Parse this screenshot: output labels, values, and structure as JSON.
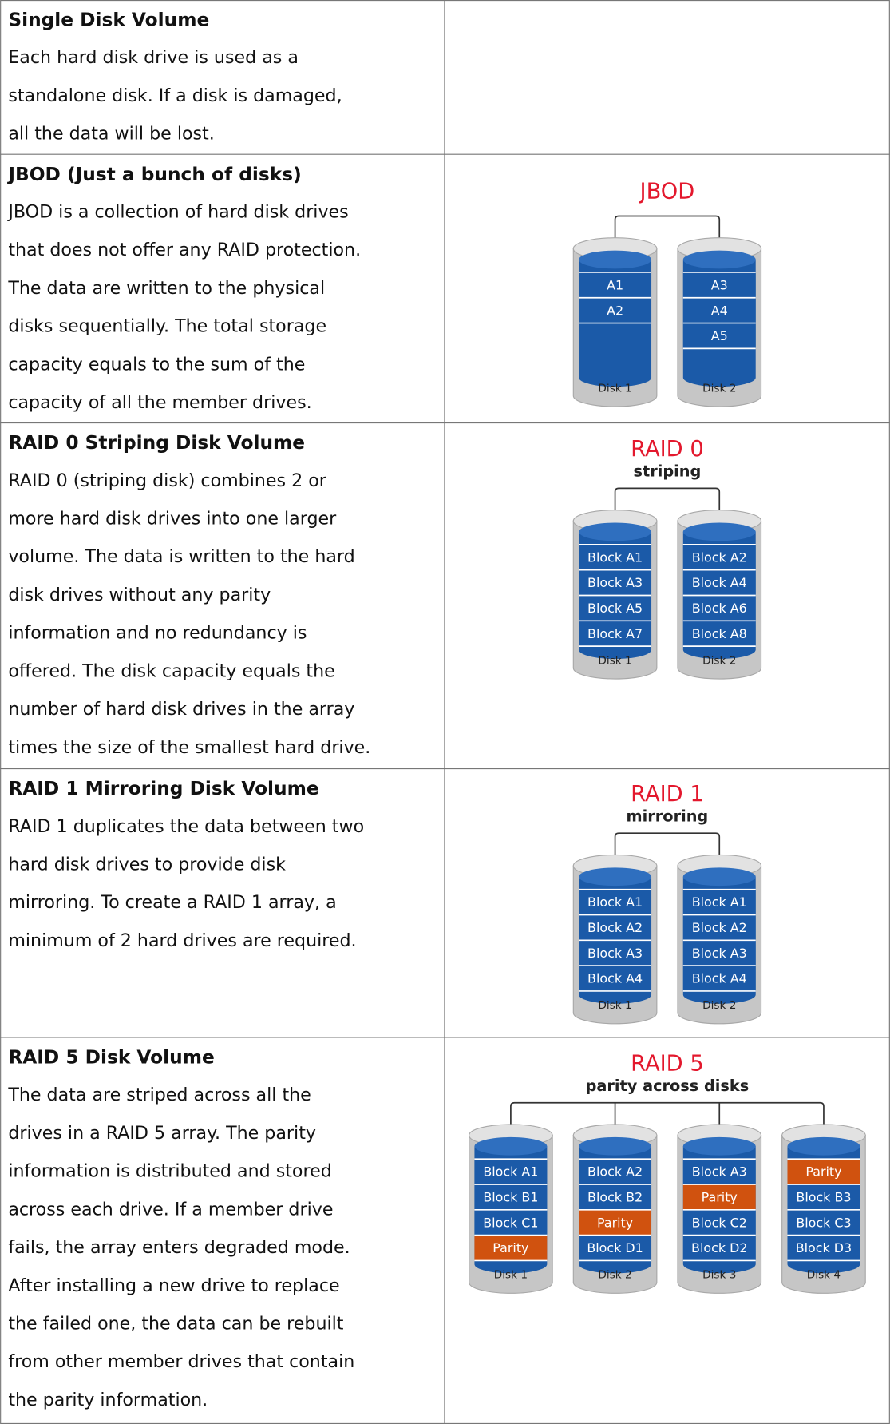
{
  "rows": [
    {
      "title": "Single Disk Volume",
      "lines": [
        "Each hard disk drive is used as a",
        "standalone disk.  If a disk is damaged,",
        "all the data will be lost."
      ]
    },
    {
      "title": "JBOD (Just a bunch of disks)",
      "lines": [
        "JBOD is a collection of hard disk drives",
        "that does not offer any RAID protection.",
        "The data are written to the physical",
        "disks sequentially.  The total storage",
        "capacity equals to the sum of the",
        "capacity of all the member drives."
      ],
      "diagram": {
        "title": "JBOD",
        "disks": [
          {
            "label": "Disk 1",
            "blocks": [
              {
                "label": "A1",
                "color": "#1b5aa8"
              },
              {
                "label": "A2",
                "color": "#1b5aa8"
              }
            ]
          },
          {
            "label": "Disk 2",
            "blocks": [
              {
                "label": "A3",
                "color": "#1b5aa8"
              },
              {
                "label": "A4",
                "color": "#1b5aa8"
              },
              {
                "label": "A5",
                "color": "#1b5aa8"
              }
            ]
          }
        ]
      }
    },
    {
      "title": "RAID 0 Striping Disk Volume",
      "lines": [
        "RAID 0 (striping disk) combines 2 or",
        "more hard disk drives into one larger",
        "volume.  The data is written to the hard",
        "disk drives without any parity",
        "information and no redundancy is",
        "offered.  The disk capacity equals the",
        "number of hard disk drives in the array",
        "times the size of the smallest hard drive."
      ],
      "diagram": {
        "title": "RAID 0",
        "subtitle": "striping",
        "disks": [
          {
            "label": "Disk 1",
            "blocks": [
              {
                "label": "Block A1",
                "color": "#1b5aa8"
              },
              {
                "label": "Block A3",
                "color": "#1b5aa8"
              },
              {
                "label": "Block A5",
                "color": "#1b5aa8"
              },
              {
                "label": "Block A7",
                "color": "#1b5aa8"
              }
            ]
          },
          {
            "label": "Disk 2",
            "blocks": [
              {
                "label": "Block A2",
                "color": "#1b5aa8"
              },
              {
                "label": "Block A4",
                "color": "#1b5aa8"
              },
              {
                "label": "Block A6",
                "color": "#1b5aa8"
              },
              {
                "label": "Block A8",
                "color": "#1b5aa8"
              }
            ]
          }
        ]
      }
    },
    {
      "title": "RAID 1 Mirroring Disk Volume",
      "lines": [
        "RAID 1 duplicates the data between two",
        "hard disk drives to provide disk",
        "mirroring.  To create a RAID 1 array, a",
        "minimum of 2 hard drives are required."
      ],
      "diagram": {
        "title": "RAID 1",
        "subtitle": "mirroring",
        "disks": [
          {
            "label": "Disk 1",
            "blocks": [
              {
                "label": "Block A1",
                "color": "#1b5aa8"
              },
              {
                "label": "Block A2",
                "color": "#1b5aa8"
              },
              {
                "label": "Block A3",
                "color": "#1b5aa8"
              },
              {
                "label": "Block A4",
                "color": "#1b5aa8"
              }
            ]
          },
          {
            "label": "Disk 2",
            "blocks": [
              {
                "label": "Block A1",
                "color": "#1b5aa8"
              },
              {
                "label": "Block A2",
                "color": "#1b5aa8"
              },
              {
                "label": "Block A3",
                "color": "#1b5aa8"
              },
              {
                "label": "Block A4",
                "color": "#1b5aa8"
              }
            ]
          }
        ]
      }
    },
    {
      "title": "RAID 5 Disk Volume",
      "lines": [
        "The data are striped across all the",
        "drives in a RAID 5 array.  The parity",
        "information is distributed and stored",
        "across each drive.  If a member drive",
        "fails, the array enters degraded mode.",
        "After installing a new drive to replace",
        "the failed one, the data can be rebuilt",
        "from other member drives that contain",
        "the parity information."
      ],
      "diagram": {
        "title": "RAID 5",
        "subtitle": "parity across disks",
        "disks": [
          {
            "label": "Disk 1",
            "blocks": [
              {
                "label": "Block A1",
                "color": "#1b5aa8"
              },
              {
                "label": "Block B1",
                "color": "#1b5aa8"
              },
              {
                "label": "Block C1",
                "color": "#1b5aa8"
              },
              {
                "label": "Parity",
                "color": "#d0520f"
              }
            ]
          },
          {
            "label": "Disk 2",
            "blocks": [
              {
                "label": "Block A2",
                "color": "#1b5aa8"
              },
              {
                "label": "Block B2",
                "color": "#1b5aa8"
              },
              {
                "label": "Parity",
                "color": "#d0520f"
              },
              {
                "label": "Block D1",
                "color": "#1b5aa8"
              }
            ]
          },
          {
            "label": "Disk 3",
            "blocks": [
              {
                "label": "Block A3",
                "color": "#1b5aa8"
              },
              {
                "label": "Parity",
                "color": "#d0520f"
              },
              {
                "label": "Block C2",
                "color": "#1b5aa8"
              },
              {
                "label": "Block D2",
                "color": "#1b5aa8"
              }
            ]
          },
          {
            "label": "Disk 4",
            "blocks": [
              {
                "label": "Parity",
                "color": "#d0520f"
              },
              {
                "label": "Block B3",
                "color": "#1b5aa8"
              },
              {
                "label": "Block C3",
                "color": "#1b5aa8"
              },
              {
                "label": "Block D3",
                "color": "#1b5aa8"
              }
            ]
          }
        ]
      }
    }
  ]
}
